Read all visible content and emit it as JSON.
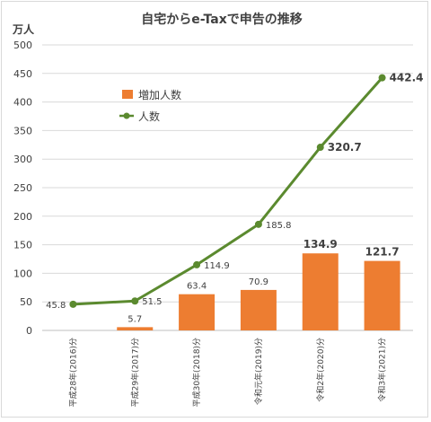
{
  "chart_data": {
    "type": "bar+line",
    "title": "自宅からe-Taxで申告の推移",
    "unit_label": "万人",
    "categories": [
      "平成28年(2016)分",
      "平成29年(2017)分",
      "平成30年(2018)分",
      "令和元年(2019)分",
      "令和2年(2020)分",
      "令和3年(2021)分"
    ],
    "series": [
      {
        "name": "増加人数",
        "type": "bar",
        "color": "#ed7d31",
        "values": [
          null,
          5.7,
          63.4,
          70.9,
          134.9,
          121.7
        ],
        "labels": [
          "",
          "5.7",
          "63.4",
          "70.9",
          "134.9",
          "121.7"
        ],
        "bold_labels": [
          false,
          false,
          false,
          false,
          true,
          true
        ]
      },
      {
        "name": "人数",
        "type": "line",
        "color": "#5b8a2f",
        "values": [
          45.8,
          51.5,
          114.9,
          185.8,
          320.7,
          442.4
        ],
        "labels": [
          "45.8",
          "51.5",
          "114.9",
          "185.8",
          "320.7",
          "442.4"
        ],
        "bold_labels": [
          false,
          false,
          false,
          false,
          true,
          true
        ]
      }
    ],
    "yticks": [
      0,
      50,
      100,
      150,
      200,
      250,
      300,
      350,
      400,
      450,
      500
    ],
    "ylim": [
      0,
      500
    ],
    "grid": true,
    "legend_position": "upper-left-inside"
  }
}
